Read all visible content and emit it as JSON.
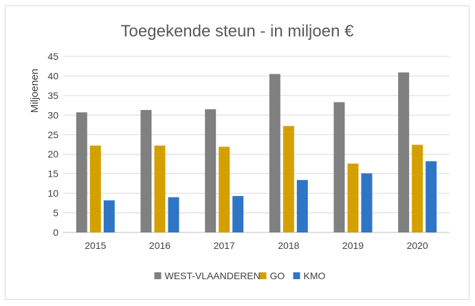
{
  "chart_data": {
    "type": "bar",
    "title": "Toegekende steun - in miljoen €",
    "xlabel": "",
    "ylabel": "Miljoenen",
    "ylim": [
      0,
      45
    ],
    "yticks": [
      "0",
      "5",
      "10",
      "15",
      "20",
      "25",
      "30",
      "35",
      "40",
      "45"
    ],
    "categories": [
      "2015",
      "2016",
      "2017",
      "2018",
      "2019",
      "2020"
    ],
    "series": [
      {
        "name": "WEST-VLAANDEREN",
        "color": "#808080",
        "values": [
          30.7,
          31.3,
          31.5,
          40.5,
          33.3,
          40.9
        ]
      },
      {
        "name": "GO",
        "color": "#d4a000",
        "values": [
          22.2,
          22.2,
          21.9,
          27.2,
          17.6,
          22.4
        ]
      },
      {
        "name": "KMO",
        "color": "#2e75c6",
        "values": [
          8.2,
          9.0,
          9.3,
          13.4,
          15.1,
          18.2
        ]
      }
    ],
    "grid": true,
    "legend_position": "bottom"
  }
}
